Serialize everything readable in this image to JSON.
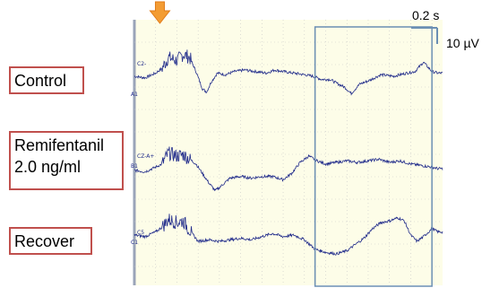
{
  "figure": {
    "labels": [
      {
        "lines": [
          "Control"
        ]
      },
      {
        "lines": [
          "Remifentanil",
          "2.0 ng/ml"
        ]
      },
      {
        "lines": [
          "Recover"
        ]
      }
    ],
    "scale_bar": {
      "time_label": "0.2 s",
      "amplitude_label": "10 µV"
    },
    "channel_tags": [
      "C2-",
      "A1",
      "CZ-A+",
      "B1",
      "C5",
      "C1"
    ],
    "colors": {
      "trace": "#1f2a8a",
      "plot_bg": "#fdfde8",
      "grid": "#c8c8c8",
      "label_border": "#c0504d",
      "highlight": "#6b8fb3",
      "arrow": "#f39c34"
    },
    "icons": [
      "stimulus-arrow"
    ]
  },
  "chart_data": {
    "type": "line",
    "title": "",
    "xlabel": "",
    "ylabel": "",
    "x_unit": "s",
    "y_unit": "µV",
    "xlim": [
      0,
      1.45
    ],
    "scale_bar": {
      "time": 0.2,
      "amplitude": 10
    },
    "stimulus_time": 0.12,
    "highlight_window": [
      0.85,
      1.4
    ],
    "series": [
      {
        "name": "Control",
        "points": [
          [
            0,
            0
          ],
          [
            0.05,
            -1
          ],
          [
            0.1,
            2
          ],
          [
            0.13,
            5
          ],
          [
            0.16,
            12
          ],
          [
            0.2,
            10
          ],
          [
            0.23,
            14
          ],
          [
            0.26,
            12
          ],
          [
            0.29,
            3
          ],
          [
            0.32,
            -8
          ],
          [
            0.34,
            -10
          ],
          [
            0.36,
            -4
          ],
          [
            0.39,
            2
          ],
          [
            0.43,
            1
          ],
          [
            0.47,
            3
          ],
          [
            0.52,
            4
          ],
          [
            0.57,
            3
          ],
          [
            0.62,
            2
          ],
          [
            0.66,
            4
          ],
          [
            0.7,
            3
          ],
          [
            0.75,
            2
          ],
          [
            0.8,
            1
          ],
          [
            0.84,
            0
          ],
          [
            0.88,
            -2
          ],
          [
            0.92,
            -2
          ],
          [
            0.96,
            -5
          ],
          [
            0.99,
            -7
          ],
          [
            1.02,
            -11
          ],
          [
            1.06,
            -5
          ],
          [
            1.1,
            -3
          ],
          [
            1.16,
            1
          ],
          [
            1.22,
            0
          ],
          [
            1.28,
            2
          ],
          [
            1.32,
            3
          ],
          [
            1.36,
            9
          ],
          [
            1.4,
            3
          ],
          [
            1.43,
            2
          ]
        ]
      },
      {
        "name": "Remifentanil 2.0 ng/ml",
        "points": [
          [
            0,
            -1
          ],
          [
            0.05,
            -2
          ],
          [
            0.1,
            1
          ],
          [
            0.13,
            3
          ],
          [
            0.16,
            10
          ],
          [
            0.2,
            8
          ],
          [
            0.23,
            9
          ],
          [
            0.26,
            6
          ],
          [
            0.29,
            3
          ],
          [
            0.32,
            -3
          ],
          [
            0.35,
            -9
          ],
          [
            0.38,
            -14
          ],
          [
            0.4,
            -12
          ],
          [
            0.45,
            -6
          ],
          [
            0.5,
            -5
          ],
          [
            0.55,
            -6
          ],
          [
            0.6,
            -5
          ],
          [
            0.65,
            -5
          ],
          [
            0.7,
            -7
          ],
          [
            0.74,
            -3
          ],
          [
            0.78,
            4
          ],
          [
            0.82,
            8
          ],
          [
            0.86,
            5
          ],
          [
            0.9,
            3
          ],
          [
            0.95,
            4
          ],
          [
            1.0,
            5
          ],
          [
            1.05,
            4
          ],
          [
            1.1,
            5
          ],
          [
            1.15,
            6
          ],
          [
            1.2,
            4
          ],
          [
            1.25,
            5
          ],
          [
            1.3,
            3
          ],
          [
            1.35,
            2
          ],
          [
            1.4,
            1
          ],
          [
            1.43,
            0
          ]
        ]
      },
      {
        "name": "Recover",
        "points": [
          [
            0,
            0
          ],
          [
            0.05,
            -1
          ],
          [
            0.1,
            2
          ],
          [
            0.13,
            5
          ],
          [
            0.16,
            10
          ],
          [
            0.2,
            8
          ],
          [
            0.23,
            9
          ],
          [
            0.26,
            3
          ],
          [
            0.3,
            -4
          ],
          [
            0.35,
            -3
          ],
          [
            0.4,
            -4
          ],
          [
            0.45,
            -3
          ],
          [
            0.5,
            -2
          ],
          [
            0.55,
            -3
          ],
          [
            0.6,
            -1
          ],
          [
            0.65,
            1
          ],
          [
            0.7,
            -1
          ],
          [
            0.75,
            0
          ],
          [
            0.8,
            -3
          ],
          [
            0.85,
            -9
          ],
          [
            0.9,
            -11
          ],
          [
            0.95,
            -12
          ],
          [
            1.0,
            -10
          ],
          [
            1.04,
            -6
          ],
          [
            1.08,
            -2
          ],
          [
            1.12,
            4
          ],
          [
            1.16,
            8
          ],
          [
            1.2,
            9
          ],
          [
            1.24,
            11
          ],
          [
            1.27,
            9
          ],
          [
            1.3,
            0
          ],
          [
            1.33,
            -4
          ],
          [
            1.36,
            -1
          ],
          [
            1.4,
            4
          ],
          [
            1.43,
            2
          ]
        ]
      }
    ]
  }
}
